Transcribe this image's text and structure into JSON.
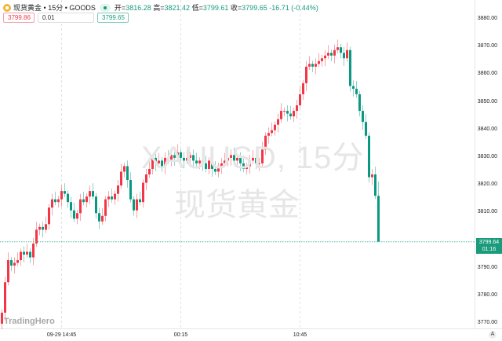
{
  "header": {
    "symbol_name": "现货黄金",
    "interval": "15分",
    "source": "GOODS",
    "separator": "•",
    "open_label": "开=",
    "open": "3816.28",
    "high_label": "高=",
    "high": "3821.42",
    "low_label": "低=",
    "low": "3799.61",
    "close_label": "收=",
    "close": "3799.65",
    "change": "-16.71",
    "change_pct": "(-0.44%)"
  },
  "order_inputs": {
    "sell_price": "3799.86",
    "quantity": "0.01",
    "buy_price": "3799.65"
  },
  "watermark": {
    "line1": "XAUUSD, 15分",
    "line2": "现货黄金"
  },
  "logo": "TradingHero",
  "last_price": {
    "price": "3799.64",
    "countdown": "01:16"
  },
  "auto_button": "A",
  "colors": {
    "up": "#f23645",
    "down": "#089981",
    "grid": "#e0e0e0",
    "price_line": "#4fb7a1"
  },
  "chart_data": {
    "type": "candlestick",
    "interval": "15m",
    "ylim": [
      3770,
      3880
    ],
    "y_ticks": [
      "3880.00",
      "3870.00",
      "3860.00",
      "3850.00",
      "3840.00",
      "3830.00",
      "3820.00",
      "3810.00",
      "3790.00",
      "3780.00",
      "3770.00"
    ],
    "x_ticks": [
      {
        "label": "09-29 14:45",
        "candle": 19
      },
      {
        "label": "00:15",
        "candle": 57
      },
      {
        "label": "10:45",
        "candle": 95
      }
    ],
    "first_open": 3770,
    "closes": [
      3774,
      3785,
      3793,
      3791,
      3792,
      3793,
      3796,
      3795,
      3796,
      3794,
      3799,
      3804,
      3805,
      3804,
      3806,
      3812,
      3815,
      3814,
      3815,
      3818,
      3817,
      3814,
      3811,
      3808,
      3810,
      3815,
      3814,
      3816,
      3818,
      3816,
      3810,
      3807,
      3809,
      3815,
      3816,
      3815,
      3817,
      3820,
      3825,
      3827,
      3822,
      3815,
      3811,
      3815,
      3814,
      3821,
      3824,
      3826,
      3830,
      3828,
      3829,
      3827,
      3830,
      3829,
      3831,
      3830,
      3832,
      3830,
      3829,
      3830,
      3831,
      3829,
      3828,
      3829,
      3828,
      3826,
      3829,
      3826,
      3825,
      3827,
      3828,
      3829,
      3830,
      3831,
      3829,
      3830,
      3828,
      3826,
      3827,
      3829,
      3830,
      3828,
      3828,
      3833,
      3838,
      3839,
      3840,
      3842,
      3844,
      3847,
      3847,
      3846,
      3845,
      3847,
      3849,
      3853,
      3857,
      3863,
      3864,
      3863,
      3864,
      3865,
      3866,
      3867,
      3868,
      3867,
      3869,
      3870,
      3868,
      3866,
      3869,
      3856,
      3855,
      3853,
      3847,
      3843,
      3838,
      3823,
      3824,
      3816.28,
      3799.65
    ],
    "last_candle": {
      "open": 3816.28,
      "high": 3821.42,
      "low": 3799.61,
      "close": 3799.65
    }
  }
}
